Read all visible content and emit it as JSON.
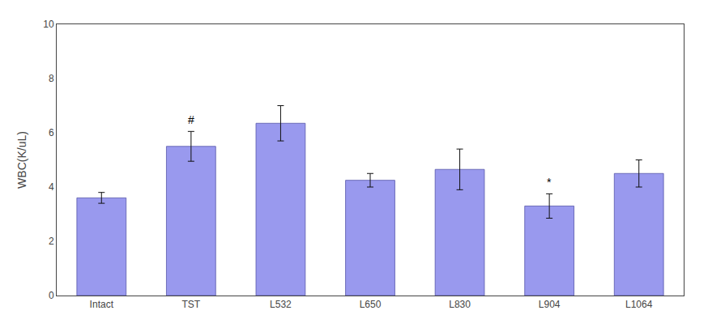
{
  "chart_data": {
    "type": "bar",
    "categories": [
      "Intact",
      "TST",
      "L532",
      "L650",
      "L830",
      "L904",
      "L1064"
    ],
    "values": [
      3.6,
      5.5,
      6.35,
      4.25,
      4.65,
      3.3,
      4.5
    ],
    "errors": [
      0.2,
      0.55,
      0.65,
      0.25,
      0.75,
      0.45,
      0.5
    ],
    "color": "#9999ee",
    "ylabel": "WBC(K/uL)",
    "ylim": [
      0,
      10
    ],
    "yticks": [
      0,
      2,
      4,
      6,
      8,
      10
    ],
    "annotations": [
      {
        "text": "#",
        "category": "TST"
      },
      {
        "text": "*",
        "category": "L904"
      }
    ],
    "grid": false
  }
}
